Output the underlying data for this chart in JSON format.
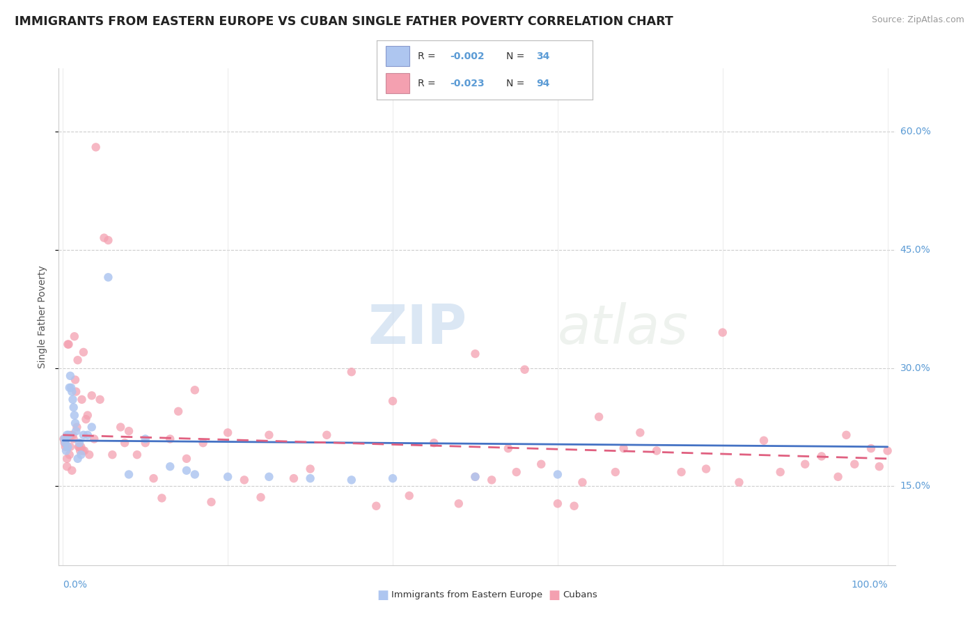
{
  "title": "IMMIGRANTS FROM EASTERN EUROPE VS CUBAN SINGLE FATHER POVERTY CORRELATION CHART",
  "source": "Source: ZipAtlas.com",
  "ylabel": "Single Father Poverty",
  "yaxis_labels": [
    "15.0%",
    "30.0%",
    "45.0%",
    "60.0%"
  ],
  "yaxis_values": [
    0.15,
    0.3,
    0.45,
    0.6
  ],
  "legend_R_blue": "-0.002",
  "legend_N_blue": "34",
  "legend_R_pink": "-0.023",
  "legend_N_pink": "94",
  "legend_label_blue": "Immigrants from Eastern Europe",
  "legend_label_pink": "Cubans",
  "scatter_color_blue": "#aec6f0",
  "scatter_color_pink": "#f4a0b0",
  "trend_color_blue": "#4472c4",
  "trend_color_pink": "#e06080",
  "background_color": "#ffffff",
  "axis_label_color": "#5b9bd5",
  "text_color": "#333333",
  "source_color": "#999999",
  "blue_x": [
    0.2,
    0.3,
    0.4,
    0.5,
    0.6,
    0.7,
    0.8,
    0.9,
    1.0,
    1.1,
    1.2,
    1.3,
    1.4,
    1.5,
    1.6,
    1.8,
    2.0,
    2.2,
    2.5,
    3.0,
    3.5,
    5.5,
    8.0,
    10.0,
    13.0,
    15.0,
    16.0,
    20.0,
    25.0,
    30.0,
    35.0,
    40.0,
    50.0,
    60.0
  ],
  "blue_y": [
    0.21,
    0.205,
    0.195,
    0.215,
    0.2,
    0.215,
    0.275,
    0.29,
    0.275,
    0.27,
    0.26,
    0.25,
    0.24,
    0.23,
    0.22,
    0.185,
    0.205,
    0.19,
    0.215,
    0.215,
    0.225,
    0.415,
    0.165,
    0.21,
    0.175,
    0.17,
    0.165,
    0.162,
    0.162,
    0.16,
    0.158,
    0.16,
    0.162,
    0.165
  ],
  "pink_x": [
    0.1,
    0.2,
    0.3,
    0.4,
    0.5,
    0.5,
    0.6,
    0.7,
    0.8,
    0.9,
    1.0,
    1.1,
    1.2,
    1.3,
    1.4,
    1.5,
    1.6,
    1.7,
    1.8,
    1.9,
    2.0,
    2.1,
    2.2,
    2.3,
    2.4,
    2.5,
    2.6,
    2.8,
    3.0,
    3.2,
    3.5,
    3.8,
    4.0,
    4.5,
    5.0,
    5.5,
    6.0,
    7.0,
    7.5,
    8.0,
    9.0,
    10.0,
    11.0,
    12.0,
    13.0,
    14.0,
    15.0,
    16.0,
    17.0,
    18.0,
    20.0,
    22.0,
    24.0,
    25.0,
    28.0,
    30.0,
    32.0,
    35.0,
    38.0,
    40.0,
    42.0,
    45.0,
    48.0,
    50.0,
    52.0,
    54.0,
    56.0,
    60.0,
    62.0,
    65.0,
    68.0,
    70.0,
    75.0,
    78.0,
    80.0,
    85.0,
    90.0,
    92.0,
    95.0,
    98.0,
    100.0,
    50.0,
    55.0,
    58.0,
    63.0,
    67.0,
    72.0,
    82.0,
    87.0,
    94.0,
    96.0,
    99.0,
    102.0,
    105.0
  ],
  "pink_y": [
    0.21,
    0.205,
    0.2,
    0.21,
    0.185,
    0.175,
    0.33,
    0.33,
    0.19,
    0.2,
    0.215,
    0.17,
    0.215,
    0.21,
    0.34,
    0.285,
    0.27,
    0.225,
    0.31,
    0.2,
    0.2,
    0.195,
    0.2,
    0.26,
    0.195,
    0.32,
    0.195,
    0.235,
    0.24,
    0.19,
    0.265,
    0.21,
    0.58,
    0.26,
    0.465,
    0.462,
    0.19,
    0.225,
    0.205,
    0.22,
    0.19,
    0.205,
    0.16,
    0.135,
    0.21,
    0.245,
    0.185,
    0.272,
    0.205,
    0.13,
    0.218,
    0.158,
    0.136,
    0.215,
    0.16,
    0.172,
    0.215,
    0.295,
    0.125,
    0.258,
    0.138,
    0.205,
    0.128,
    0.318,
    0.158,
    0.198,
    0.298,
    0.128,
    0.125,
    0.238,
    0.198,
    0.218,
    0.168,
    0.172,
    0.345,
    0.208,
    0.178,
    0.188,
    0.215,
    0.198,
    0.195,
    0.162,
    0.168,
    0.178,
    0.155,
    0.168,
    0.195,
    0.155,
    0.168,
    0.162,
    0.178,
    0.175,
    0.168,
    0.16
  ]
}
